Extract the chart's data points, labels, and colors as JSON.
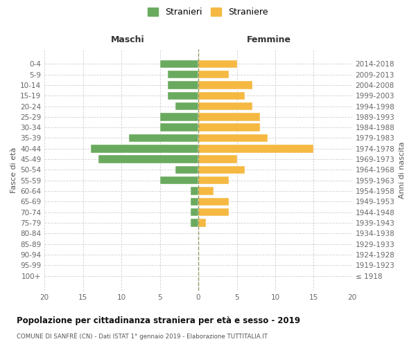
{
  "age_groups": [
    "0-4",
    "5-9",
    "10-14",
    "15-19",
    "20-24",
    "25-29",
    "30-34",
    "35-39",
    "40-44",
    "45-49",
    "50-54",
    "55-59",
    "60-64",
    "65-69",
    "70-74",
    "75-79",
    "80-84",
    "85-89",
    "90-94",
    "95-99",
    "100+"
  ],
  "birth_years": [
    "2014-2018",
    "2009-2013",
    "2004-2008",
    "1999-2003",
    "1994-1998",
    "1989-1993",
    "1984-1988",
    "1979-1983",
    "1974-1978",
    "1969-1973",
    "1964-1968",
    "1959-1963",
    "1954-1958",
    "1949-1953",
    "1944-1948",
    "1939-1943",
    "1934-1938",
    "1929-1933",
    "1924-1928",
    "1919-1923",
    "≤ 1918"
  ],
  "maschi": [
    5,
    4,
    4,
    4,
    3,
    5,
    5,
    9,
    14,
    13,
    3,
    5,
    1,
    1,
    1,
    1,
    0,
    0,
    0,
    0,
    0
  ],
  "femmine": [
    5,
    4,
    7,
    6,
    7,
    8,
    8,
    9,
    15,
    5,
    6,
    4,
    2,
    4,
    4,
    1,
    0,
    0,
    0,
    0,
    0
  ],
  "color_maschi": "#6aaa5e",
  "color_femmine": "#f5b942",
  "title": "Popolazione per cittadinanza straniera per età e sesso - 2019",
  "subtitle": "COMUNE DI SANFRÈ (CN) - Dati ISTAT 1° gennaio 2019 - Elaborazione TUTTITALIA.IT",
  "xlabel_maschi": "Maschi",
  "xlabel_femmine": "Femmine",
  "ylabel": "Fasce di età",
  "ylabel_right": "Anni di nascita",
  "legend_maschi": "Stranieri",
  "legend_femmine": "Straniere",
  "xlim": 20,
  "background_color": "#ffffff",
  "grid_color": "#cccccc",
  "bar_edge_color": "#ffffff"
}
